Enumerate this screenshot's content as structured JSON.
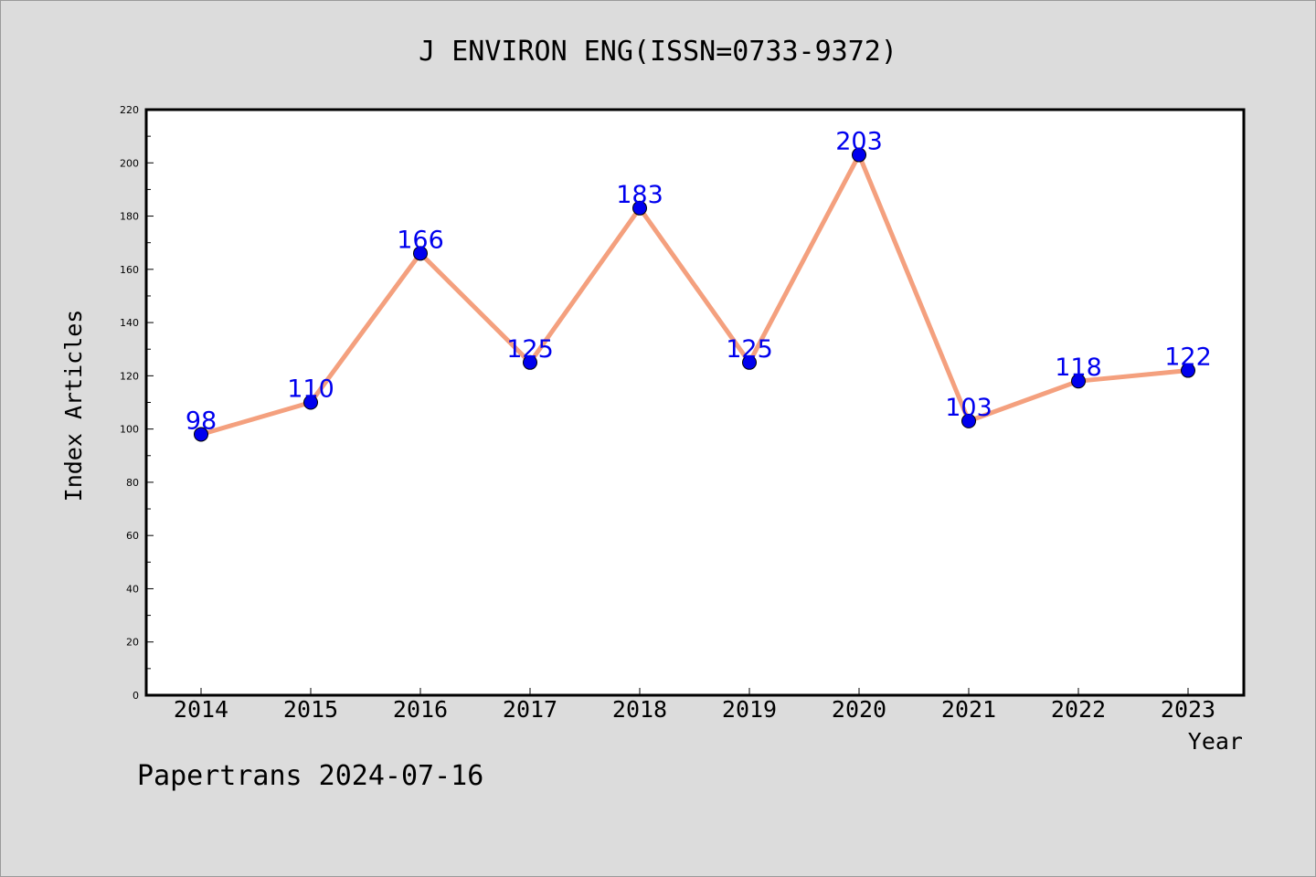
{
  "chart_data": {
    "type": "line",
    "title": "J ENVIRON ENG(ISSN=0733-9372)",
    "xlabel": "Year",
    "ylabel": "Index Articles",
    "categories": [
      "2014",
      "2015",
      "2016",
      "2017",
      "2018",
      "2019",
      "2020",
      "2021",
      "2022",
      "2023"
    ],
    "series": [
      {
        "values": [
          98,
          110,
          166,
          125,
          183,
          125,
          203,
          103,
          118,
          122
        ]
      }
    ],
    "data_labels": [
      "98",
      "110",
      "166",
      "125",
      "183",
      "125",
      "203",
      "103",
      "118",
      "122"
    ],
    "y_ticks": [
      "0",
      "20",
      "40",
      "60",
      "80",
      "100",
      "120",
      "140",
      "160",
      "180",
      "200",
      "220"
    ],
    "ylim": [
      0,
      220
    ],
    "grid": false,
    "line_color": "#f4a07e",
    "marker_color": "#0000ee",
    "label_color": "#0000ee"
  },
  "footer": {
    "text": "Papertrans 2024-07-16"
  }
}
